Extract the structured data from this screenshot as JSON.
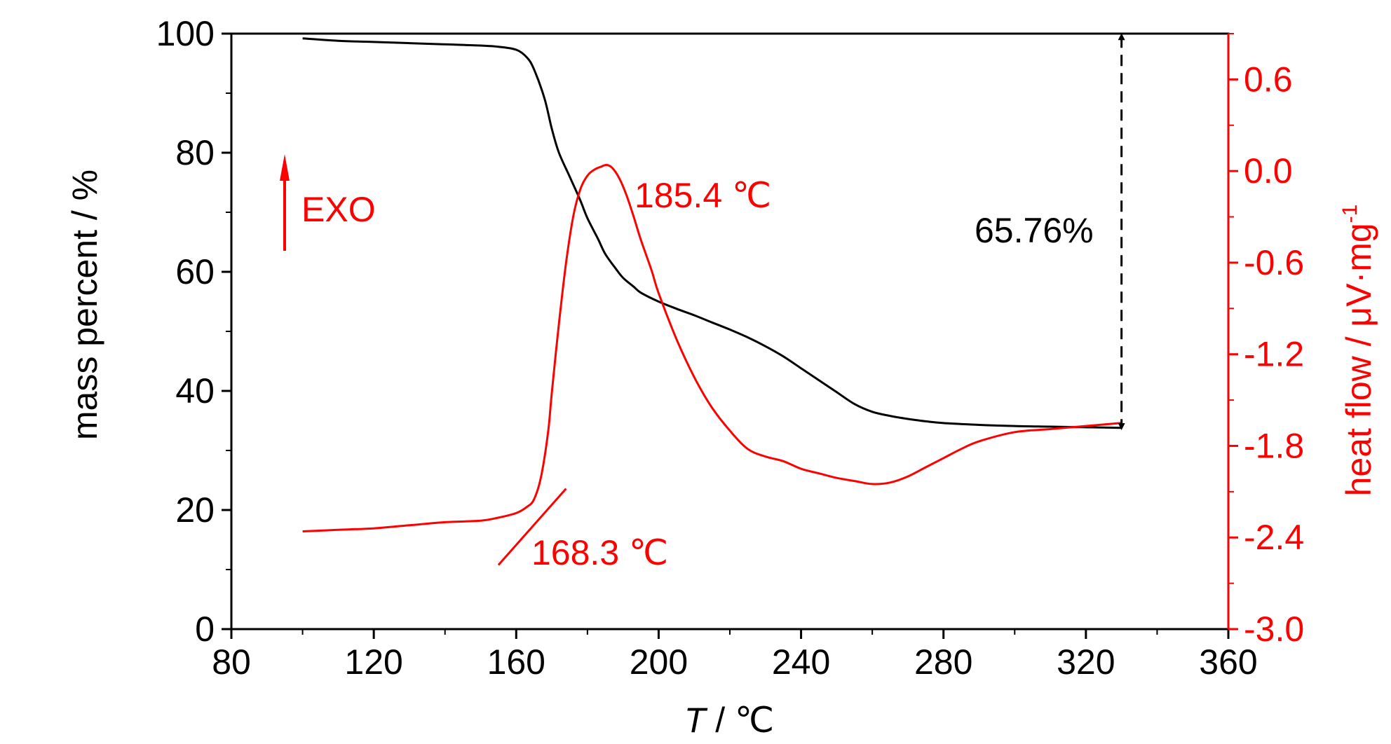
{
  "chart_data": {
    "type": "line",
    "title": "",
    "xlabel": "",
    "xlabel_italic": "T",
    "xlabel_rest": " / ℃",
    "ylabel_left": "mass percent / %",
    "ylabel_right_main": "heat flow / μV·mg",
    "ylabel_right_sup": "-1",
    "xlim": [
      80,
      360
    ],
    "ylim_left": [
      0,
      100
    ],
    "ylim_right": [
      -3.0,
      0.9
    ],
    "x_ticks": [
      "80",
      "120",
      "160",
      "200",
      "240",
      "280",
      "320",
      "360"
    ],
    "y_left_ticks": [
      "0",
      "20",
      "40",
      "60",
      "80",
      "100"
    ],
    "y_right_ticks": [
      "-3.0",
      "-2.4",
      "-1.8",
      "-1.2",
      "-0.6",
      "0.0",
      "0.6"
    ],
    "series": [
      {
        "axis": "left",
        "color": "#000000",
        "x": [
          100,
          110,
          120,
          130,
          140,
          150,
          155,
          160,
          163,
          165,
          168,
          170,
          172,
          175,
          178,
          180,
          183,
          185,
          188,
          190,
          193,
          195,
          200,
          205,
          210,
          215,
          220,
          225,
          230,
          235,
          240,
          245,
          250,
          255,
          260,
          265,
          270,
          275,
          280,
          290,
          300,
          310,
          320,
          330
        ],
        "y": [
          99.2,
          98.8,
          98.6,
          98.4,
          98.2,
          98.0,
          97.8,
          97.3,
          96.0,
          94.0,
          89.0,
          84.0,
          80.0,
          76.0,
          72.0,
          69.0,
          65.5,
          63.0,
          60.5,
          59.0,
          57.5,
          56.5,
          55.0,
          53.8,
          52.7,
          51.5,
          50.3,
          49.0,
          47.5,
          45.8,
          43.8,
          41.8,
          39.8,
          37.8,
          36.5,
          35.8,
          35.3,
          34.9,
          34.6,
          34.3,
          34.1,
          34.0,
          33.9,
          33.8
        ]
      },
      {
        "axis": "right",
        "color": "#ff0000",
        "x": [
          100,
          110,
          120,
          130,
          140,
          150,
          155,
          160,
          163,
          165,
          167,
          169,
          170,
          172,
          174,
          176,
          178,
          180,
          182,
          184,
          185.4,
          187,
          189,
          191,
          193,
          195,
          198,
          200,
          205,
          210,
          215,
          220,
          225,
          230,
          235,
          240,
          245,
          250,
          255,
          260,
          265,
          270,
          275,
          280,
          285,
          290,
          300,
          310,
          320,
          330
        ],
        "y": [
          -2.36,
          -2.35,
          -2.34,
          -2.32,
          -2.3,
          -2.29,
          -2.27,
          -2.24,
          -2.2,
          -2.15,
          -2.0,
          -1.7,
          -1.45,
          -1.0,
          -0.6,
          -0.3,
          -0.12,
          -0.03,
          0.01,
          0.03,
          0.04,
          0.02,
          -0.05,
          -0.16,
          -0.3,
          -0.45,
          -0.65,
          -0.8,
          -1.1,
          -1.35,
          -1.55,
          -1.7,
          -1.82,
          -1.87,
          -1.9,
          -1.95,
          -1.98,
          -2.01,
          -2.03,
          -2.05,
          -2.04,
          -2.0,
          -1.94,
          -1.88,
          -1.82,
          -1.77,
          -1.71,
          -1.69,
          -1.67,
          -1.65
        ]
      }
    ],
    "annotations": {
      "exo": "EXO",
      "peak": "185.4 ℃",
      "onset": "168.3 ℃",
      "mass_loss": "65.76%"
    }
  }
}
